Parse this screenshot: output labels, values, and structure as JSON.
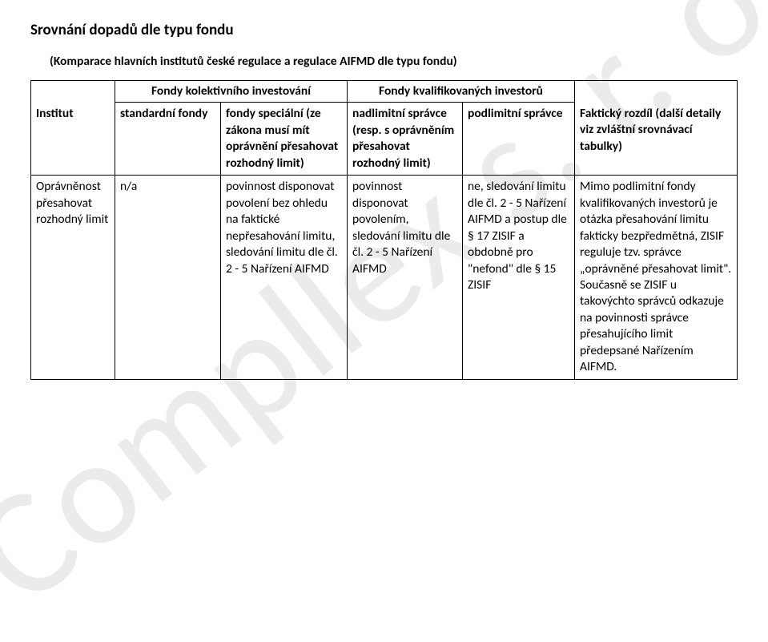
{
  "title": "Srovnání dopadů dle typu fondu",
  "subtitle": "(Komparace hlavních institutů české regulace a regulace AIFMD dle typu fondu)",
  "watermark": "Compllex s. r. o.",
  "group_headers": {
    "g1": "Fondy kolektivního investování",
    "g2": "Fondy kvalifikovaných investorů"
  },
  "headers": {
    "h0": "Institut",
    "h1": "standardní fondy",
    "h2": "fondy speciální (ze zákona musí mít oprávnění přesahovat rozhodný limit)",
    "h3": "nadlimitní správce (resp. s oprávněním přesahovat rozhodný limit)",
    "h4": "podlimitní správce",
    "h5": "Faktický rozdíl (další detaily viz zvláštní srovnávací tabulky)"
  },
  "row1": {
    "c0": "Oprávněnost přesahovat rozhodný limit",
    "c1": "n/a",
    "c2": "povinnost disponovat povolení bez ohledu na faktické nepřesahování limitu, sledování limitu dle čl. 2 - 5 Nařízení AIFMD",
    "c3": "povinnost disponovat povolením, sledování limitu dle čl. 2 - 5 Nařízení AIFMD",
    "c4": "ne, sledování limitu dle čl. 2 - 5 Nařízení AIFMD a postup dle § 17 ZISIF a obdobně pro \"nefond\" dle § 15 ZISIF",
    "c5": "Mimo podlimitní fondy kvalifikovaných investorů je otázka přesahování limitu fakticky bezpředmětná, ZISIF reguluje tzv. správce „oprávněné přesahovat limit\". Současně se ZISIF u takovýchto správců odkazuje na povinnosti správce přesahujícího limit předepsané Nařízením AIFMD."
  }
}
